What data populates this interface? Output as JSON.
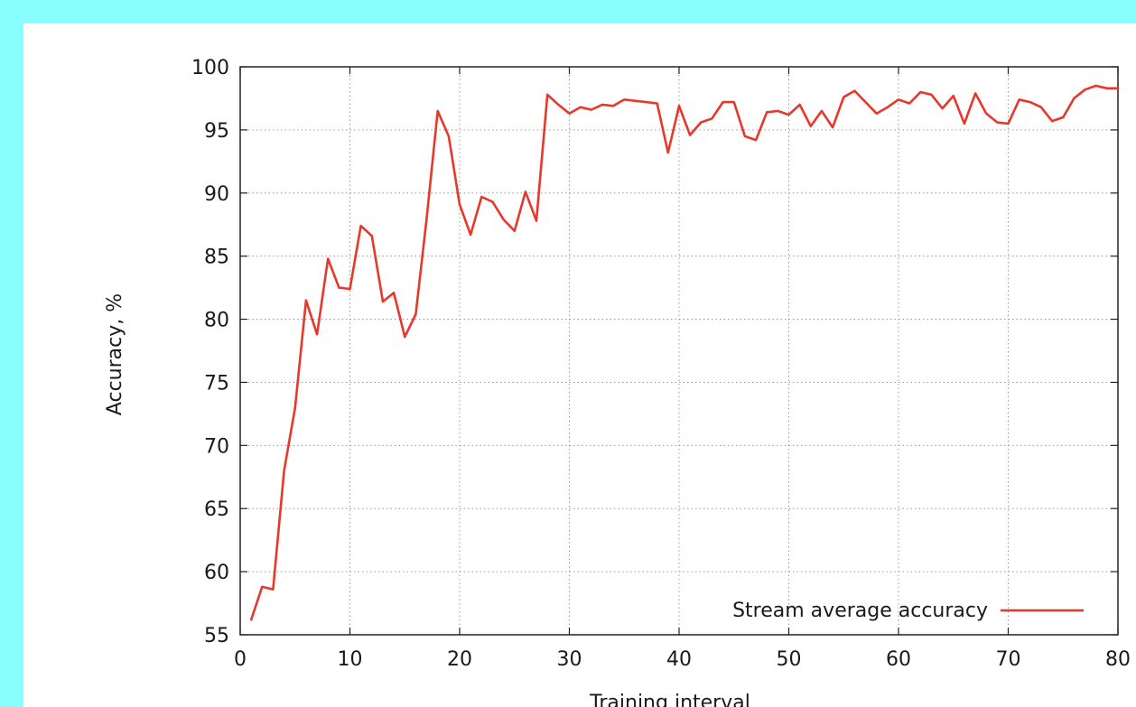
{
  "chart_data": {
    "type": "line",
    "xlabel": "Training interval",
    "ylabel": "Accuracy, %",
    "xlim": [
      0,
      80
    ],
    "ylim": [
      55,
      100
    ],
    "xticks": [
      0,
      10,
      20,
      30,
      40,
      50,
      60,
      70,
      80
    ],
    "yticks": [
      55,
      60,
      65,
      70,
      75,
      80,
      85,
      90,
      95,
      100
    ],
    "grid": true,
    "legend_position": "bottom-right",
    "series": [
      {
        "name": "Stream average accuracy",
        "color": "#e8372b",
        "x": [
          1,
          2,
          3,
          4,
          5,
          6,
          7,
          8,
          9,
          10,
          11,
          12,
          13,
          14,
          15,
          16,
          17,
          18,
          19,
          20,
          21,
          22,
          23,
          24,
          25,
          26,
          27,
          28,
          29,
          30,
          31,
          32,
          33,
          34,
          35,
          36,
          37,
          38,
          39,
          40,
          41,
          42,
          43,
          44,
          45,
          46,
          47,
          48,
          49,
          50,
          51,
          52,
          53,
          54,
          55,
          56,
          57,
          58,
          59,
          60,
          61,
          62,
          63,
          64,
          65,
          66,
          67,
          68,
          69,
          70,
          71,
          72,
          73,
          74,
          75,
          76,
          77,
          78,
          79,
          80
        ],
        "values": [
          56.2,
          58.8,
          58.6,
          68,
          73,
          81.5,
          78.8,
          84.8,
          82.5,
          82.4,
          87.4,
          86.6,
          81.4,
          82.1,
          78.6,
          80.4,
          88,
          96.5,
          94.5,
          89.1,
          86.7,
          89.7,
          89.3,
          87.9,
          87,
          90.1,
          87.8,
          97.8,
          97,
          96.3,
          96.8,
          96.6,
          97,
          96.9,
          97.4,
          97.3,
          97.2,
          97.1,
          93.2,
          96.9,
          94.6,
          95.6,
          95.9,
          97.2,
          97.2,
          94.5,
          94.2,
          96.4,
          96.5,
          96.2,
          97,
          95.3,
          96.5,
          95.2,
          97.6,
          98.1,
          97.2,
          96.3,
          96.8,
          97.4,
          97.1,
          98,
          97.8,
          96.7,
          97.7,
          95.5,
          97.9,
          96.3,
          95.6,
          95.5,
          97.4,
          97.2,
          96.8,
          95.7,
          96,
          97.5,
          98.2,
          98.5,
          98.3,
          98.3
        ]
      }
    ]
  }
}
